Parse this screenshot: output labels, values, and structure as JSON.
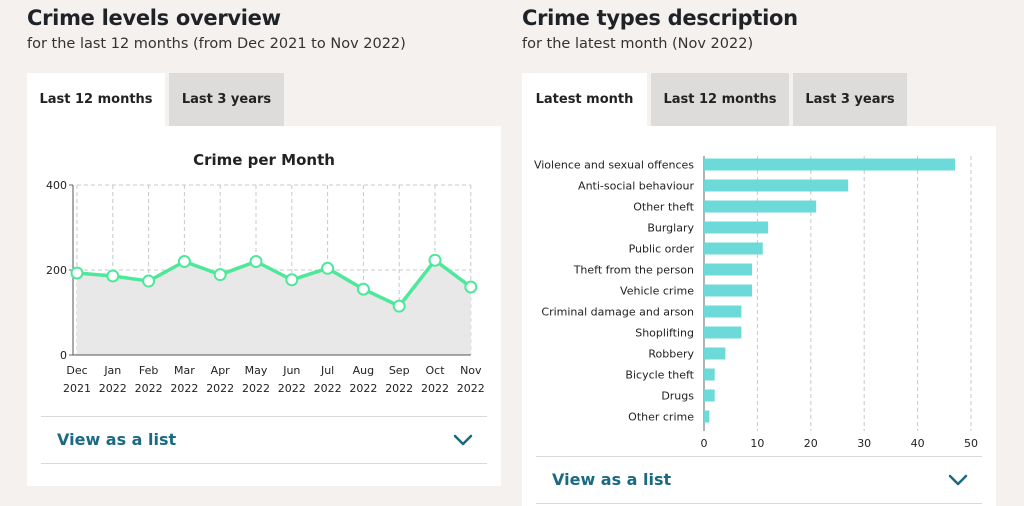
{
  "left": {
    "title": "Crime levels overview",
    "subtitle": "for the last 12 months (from Dec 2021 to Nov 2022)",
    "tabs": [
      {
        "label": "Last 12 months",
        "active": true
      },
      {
        "label": "Last 3 years",
        "active": false
      }
    ],
    "view_list_label": "View as a list"
  },
  "right": {
    "title": "Crime types description",
    "subtitle": "for the latest month (Nov 2022)",
    "tabs": [
      {
        "label": "Latest month",
        "active": true
      },
      {
        "label": "Last 12 months",
        "active": false
      },
      {
        "label": "Last 3 years",
        "active": false
      }
    ],
    "view_list_label": "View as a list"
  },
  "icons": {
    "toggle": "chevron-down-icon"
  },
  "colors": {
    "line": "#4de89a",
    "bar": "#6cdad9",
    "link": "#1a6a82",
    "area": "#e8e8e8"
  },
  "chart_data": [
    {
      "type": "area",
      "title": "Crime per Month",
      "x": [
        "Dec 2021",
        "Jan 2022",
        "Feb 2022",
        "Mar 2022",
        "Apr 2022",
        "May 2022",
        "Jun 2022",
        "Jul 2022",
        "Aug 2022",
        "Sep 2022",
        "Oct 2022",
        "Nov 2022"
      ],
      "x_tick_lines": [
        [
          "Dec",
          "2021"
        ],
        [
          "Jan",
          "2022"
        ],
        [
          "Feb",
          "2022"
        ],
        [
          "Mar",
          "2022"
        ],
        [
          "Apr",
          "2022"
        ],
        [
          "May",
          "2022"
        ],
        [
          "Jun",
          "2022"
        ],
        [
          "Jul",
          "2022"
        ],
        [
          "Aug",
          "2022"
        ],
        [
          "Sep",
          "2022"
        ],
        [
          "Oct",
          "2022"
        ],
        [
          "Nov",
          "2022"
        ]
      ],
      "values": [
        193,
        186,
        174,
        220,
        189,
        220,
        177,
        204,
        155,
        115,
        223,
        160
      ],
      "ylim": [
        0,
        400
      ],
      "yticks": [
        0,
        200,
        400
      ],
      "grid": true
    },
    {
      "type": "bar",
      "orientation": "horizontal",
      "categories": [
        "Violence and sexual offences",
        "Anti-social behaviour",
        "Other theft",
        "Burglary",
        "Public order",
        "Theft from the person",
        "Vehicle crime",
        "Criminal damage and arson",
        "Shoplifting",
        "Robbery",
        "Bicycle theft",
        "Drugs",
        "Other crime"
      ],
      "values": [
        47,
        27,
        21,
        12,
        11,
        9,
        9,
        7,
        7,
        4,
        2,
        2,
        1
      ],
      "xlim": [
        0,
        50
      ],
      "xticks": [
        0,
        10,
        20,
        30,
        40,
        50
      ],
      "grid": true
    }
  ]
}
